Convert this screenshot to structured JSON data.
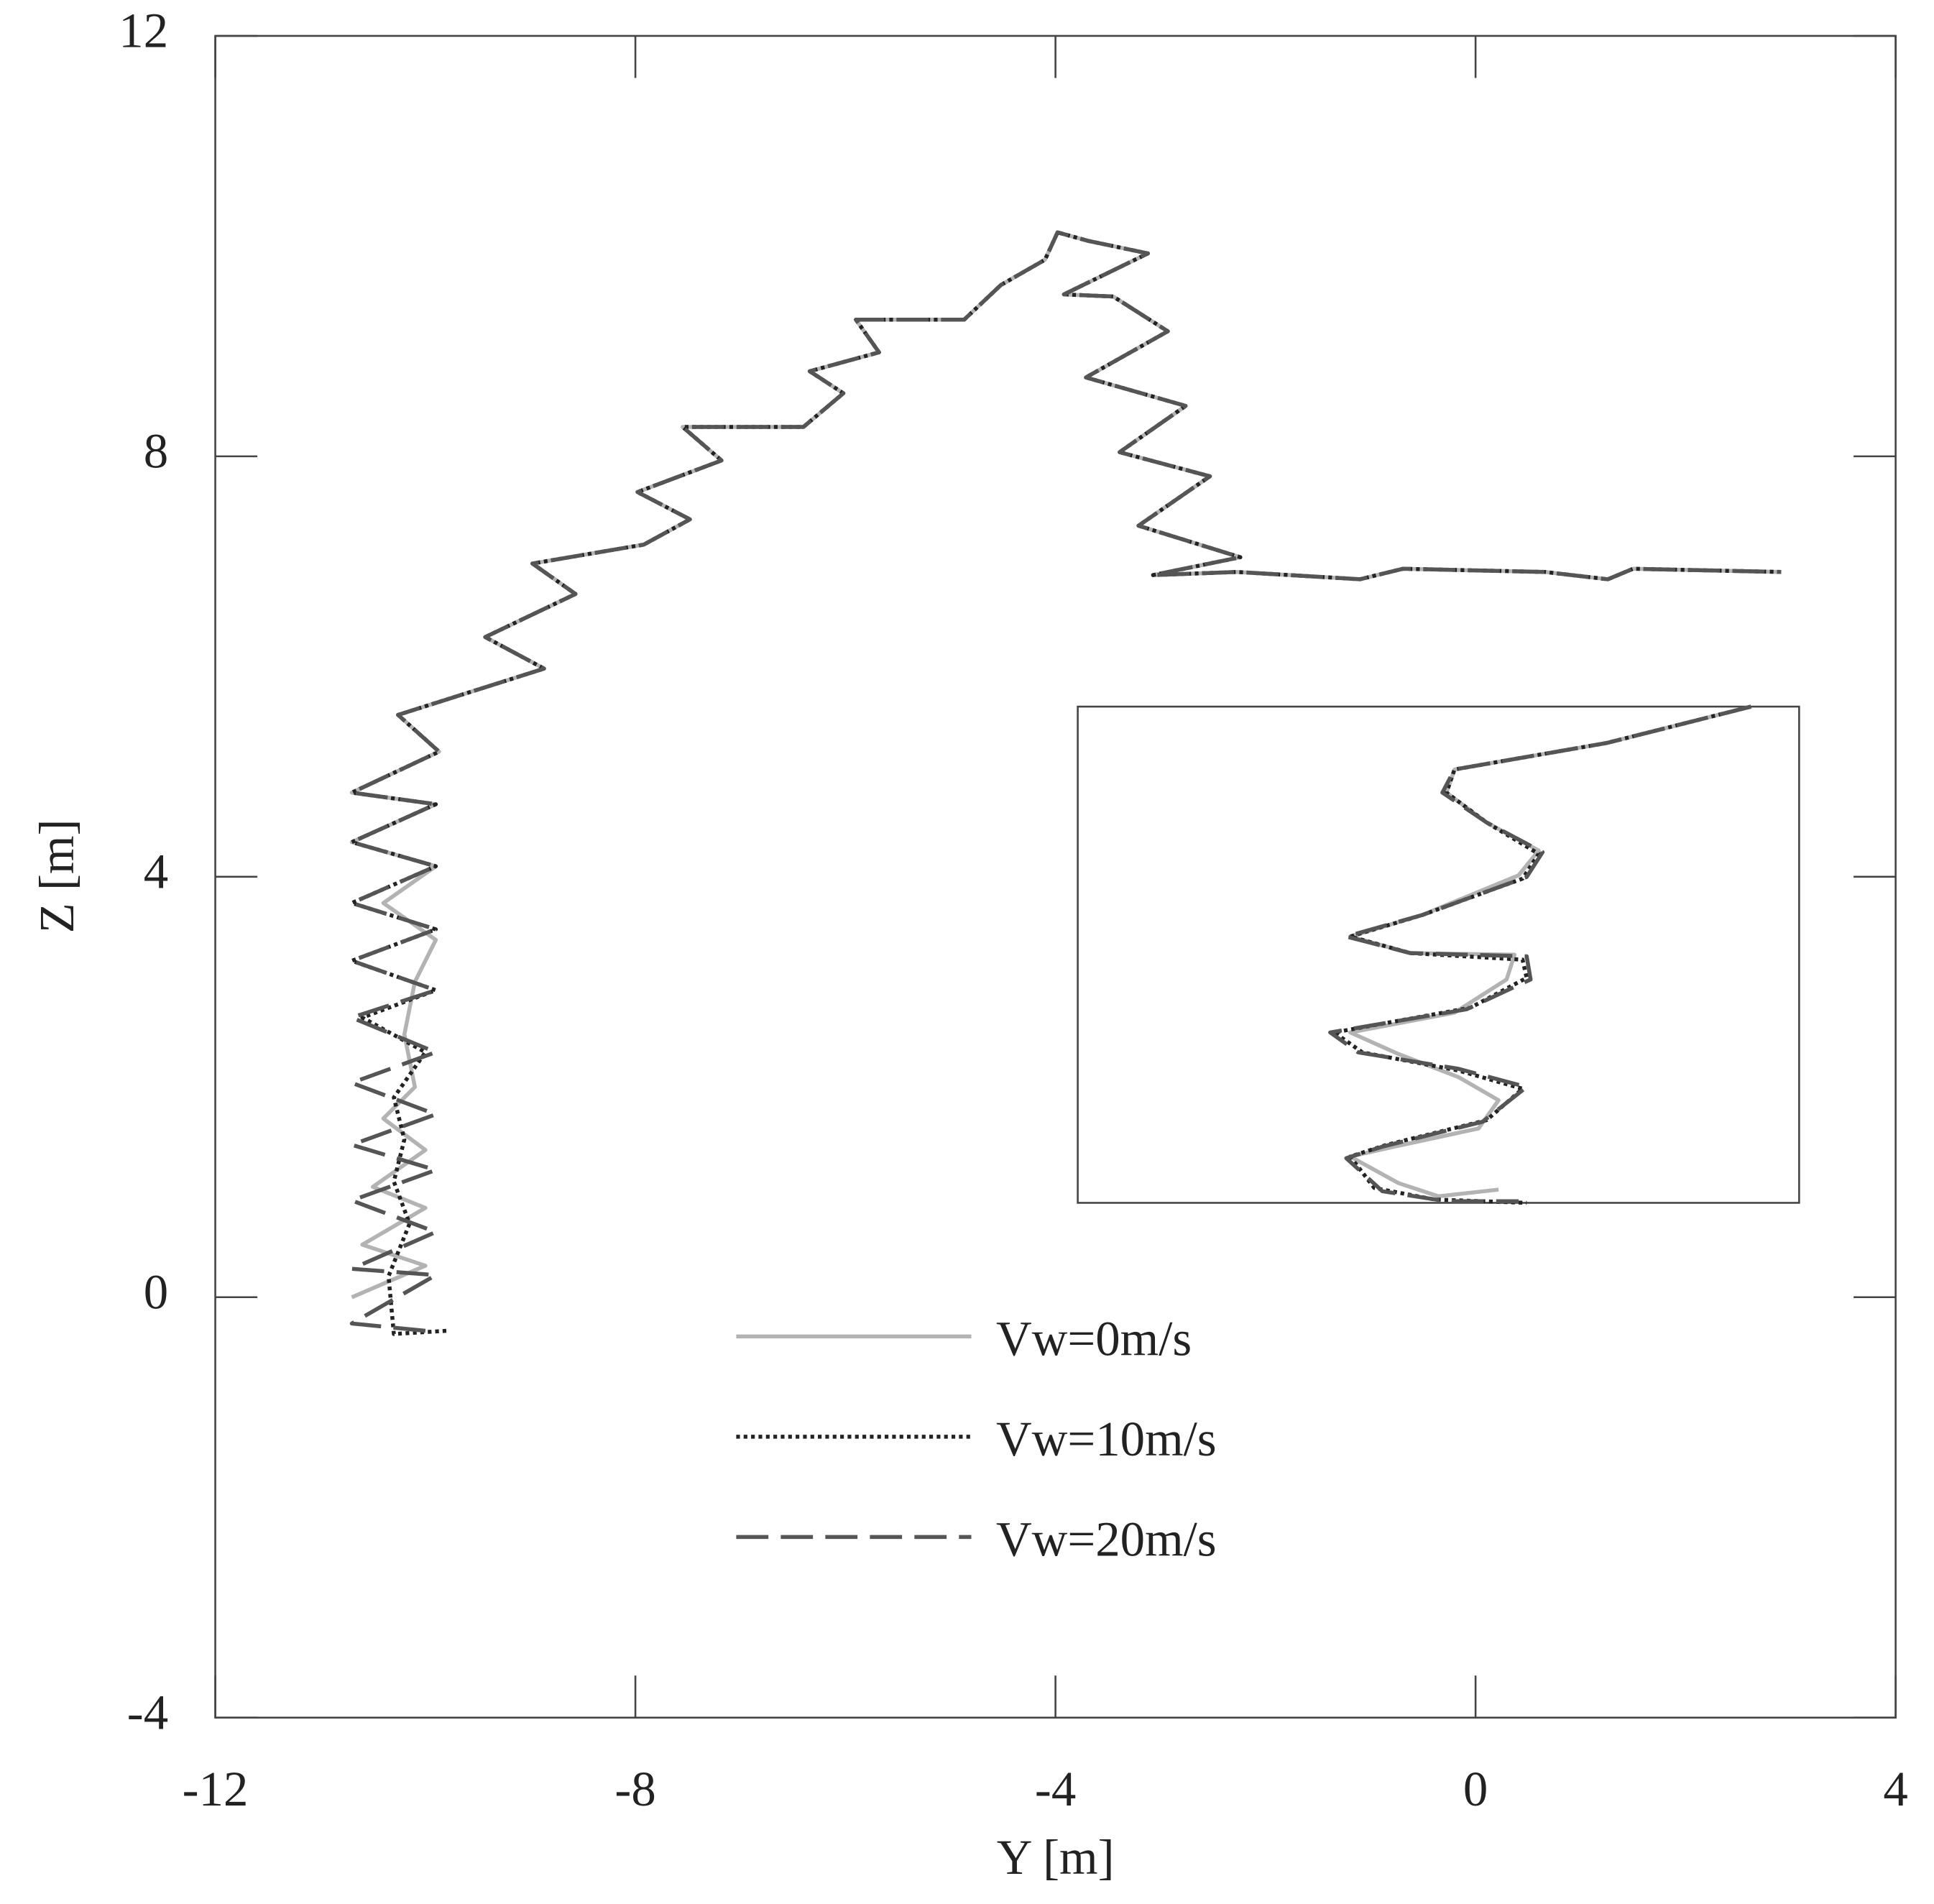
{
  "chart_data": [
    {
      "type": "line",
      "xlabel": "Y [m]",
      "ylabel": "Z [m]",
      "xlim": [
        -12,
        4
      ],
      "ylim": [
        -4,
        12
      ],
      "xticks": [
        -12,
        -8,
        -4,
        0,
        4
      ],
      "yticks": [
        -4,
        0,
        4,
        8,
        12
      ],
      "legend": "lower center",
      "series": [
        {
          "name": "Vw=0m/s",
          "color": "#b3b3b3",
          "linestyle": "solid",
          "x": [
            -10.7,
            -10.0,
            -10.6,
            -10.0,
            -10.5,
            -10.0,
            -10.4,
            -10.1,
            -10.2,
            -10.1,
            -9.9,
            -10.4,
            -9.9,
            -10.7,
            -9.9,
            -10.7,
            -9.87,
            -10.26,
            -8.87,
            -9.43,
            -8.57,
            -8.98,
            -7.92,
            -7.48,
            -7.98,
            -7.18,
            -7.55,
            -6.4,
            -6.02,
            -6.34,
            -5.68,
            -5.9,
            -4.87,
            -4.52,
            -4.1,
            -3.98,
            -3.69,
            -3.12,
            -3.92,
            -3.45,
            -2.93,
            -3.71,
            -2.76,
            -3.39,
            -2.53,
            -3.21,
            -2.24,
            -3.07,
            -2.27,
            -1.1,
            -0.69,
            0.66,
            1.26,
            1.5,
            2.91
          ],
          "values": [
            0.0,
            0.3,
            0.5,
            0.85,
            1.05,
            1.4,
            1.7,
            2.0,
            2.5,
            3.0,
            3.4,
            3.75,
            4.1,
            4.33,
            4.69,
            4.8,
            5.19,
            5.54,
            5.98,
            6.28,
            6.69,
            6.98,
            7.16,
            7.4,
            7.66,
            7.96,
            8.28,
            8.28,
            8.6,
            8.81,
            8.99,
            9.3,
            9.3,
            9.63,
            9.87,
            10.13,
            10.05,
            9.93,
            9.54,
            9.52,
            9.19,
            8.75,
            8.48,
            8.04,
            7.81,
            7.34,
            7.04,
            6.87,
            6.9,
            6.83,
            6.93,
            6.9,
            6.83,
            6.93,
            6.9
          ]
        },
        {
          "name": "Vw=10m/s",
          "color": "#222222",
          "linestyle": "dotted",
          "x": [
            -9.8,
            -10.3,
            -10.35,
            -10.15,
            -10.3,
            -10.2,
            -10.3,
            -10.0,
            -10.6,
            -9.9,
            -10.7,
            -9.9,
            -10.7,
            -9.9,
            -10.7,
            -9.9,
            -10.7,
            -9.87,
            -10.26,
            -8.87,
            -9.43,
            -8.57,
            -8.98,
            -7.92,
            -7.48,
            -7.98,
            -7.18,
            -7.55,
            -6.4,
            -6.02,
            -6.34,
            -5.68,
            -5.9,
            -4.87,
            -4.52,
            -4.1,
            -3.98,
            -3.69,
            -3.12,
            -3.92,
            -3.45,
            -2.93,
            -3.71,
            -2.76,
            -3.39,
            -2.53,
            -3.21,
            -2.24,
            -3.07,
            -2.27,
            -1.1,
            -0.69,
            0.66,
            1.26,
            1.5,
            2.91
          ],
          "values": [
            -0.32,
            -0.35,
            0.2,
            0.7,
            1.1,
            1.5,
            1.9,
            2.33,
            2.66,
            2.92,
            3.2,
            3.5,
            3.75,
            4.1,
            4.33,
            4.69,
            4.8,
            5.19,
            5.54,
            5.98,
            6.28,
            6.69,
            6.98,
            7.16,
            7.4,
            7.66,
            7.96,
            8.28,
            8.28,
            8.6,
            8.81,
            8.99,
            9.3,
            9.3,
            9.63,
            9.87,
            10.13,
            10.05,
            9.93,
            9.54,
            9.52,
            9.19,
            8.75,
            8.48,
            8.04,
            7.81,
            7.34,
            7.04,
            6.87,
            6.9,
            6.83,
            6.93,
            6.9,
            6.83,
            6.93,
            6.9
          ]
        },
        {
          "name": "Vw=20m/s",
          "color": "#555555",
          "linestyle": "dashed",
          "x": [
            -10.0,
            -10.7,
            -9.9,
            -10.7,
            -9.9,
            -10.7,
            -9.9,
            -10.7,
            -9.9,
            -10.7,
            -9.9,
            -10.7,
            -9.9,
            -10.7,
            -9.9,
            -10.7,
            -9.9,
            -10.7,
            -9.9,
            -10.7,
            -9.87,
            -10.26,
            -8.87,
            -9.43,
            -8.57,
            -8.98,
            -7.92,
            -7.48,
            -7.98,
            -7.18,
            -7.55,
            -6.4,
            -6.02,
            -6.34,
            -5.68,
            -5.9,
            -4.87,
            -4.52,
            -4.1,
            -3.98,
            -3.69,
            -3.12,
            -3.92,
            -3.45,
            -2.93,
            -3.71,
            -2.76,
            -3.39,
            -2.53,
            -3.21,
            -2.24,
            -3.07,
            -2.27,
            -1.1,
            -0.69,
            0.66,
            1.26,
            1.5,
            2.91
          ],
          "values": [
            -0.32,
            -0.25,
            0.21,
            0.27,
            0.62,
            0.92,
            1.21,
            1.45,
            1.74,
            2.04,
            2.33,
            2.66,
            2.92,
            3.2,
            3.5,
            3.75,
            4.1,
            4.33,
            4.69,
            4.8,
            5.19,
            5.54,
            5.98,
            6.28,
            6.69,
            6.98,
            7.16,
            7.4,
            7.66,
            7.96,
            8.28,
            8.28,
            8.6,
            8.81,
            8.99,
            9.3,
            9.3,
            9.63,
            9.87,
            10.13,
            10.05,
            9.93,
            9.54,
            9.52,
            9.19,
            8.75,
            8.48,
            8.04,
            7.81,
            7.34,
            7.04,
            6.87,
            6.9,
            6.83,
            6.93,
            6.9,
            6.83,
            6.93,
            6.9
          ]
        }
      ]
    },
    {
      "type": "line",
      "xlim": [
        -11.2,
        -9.4
      ],
      "ylim": [
        2.6,
        5.6
      ],
      "series": [
        {
          "color": "#b3b3b3",
          "linestyle": "solid",
          "x": [
            -9.52,
            -9.88,
            -10.26,
            -10.28,
            -10.18,
            -10.05,
            -10.1,
            -10.34,
            -10.52,
            -10.37,
            -10.11,
            -10.13,
            -10.26,
            -10.52,
            -10.4,
            -10.25,
            -10.15,
            -10.2,
            -10.41,
            -10.52,
            -10.4,
            -10.3,
            -10.15
          ],
          "values": [
            5.6,
            5.38,
            5.22,
            5.08,
            4.9,
            4.73,
            4.58,
            4.34,
            4.21,
            4.11,
            4.1,
            3.95,
            3.75,
            3.63,
            3.5,
            3.36,
            3.22,
            3.05,
            2.94,
            2.88,
            2.72,
            2.64,
            2.68
          ]
        },
        {
          "color": "#222222",
          "linestyle": "dotted",
          "x": [
            -9.52,
            -9.88,
            -10.26,
            -10.28,
            -10.18,
            -10.05,
            -10.09,
            -10.34,
            -10.52,
            -10.37,
            -10.09,
            -10.08,
            -10.22,
            -10.56,
            -10.49,
            -10.25,
            -10.09,
            -10.18,
            -10.43,
            -10.52,
            -10.46,
            -10.31,
            -10.08
          ],
          "values": [
            5.6,
            5.38,
            5.22,
            5.08,
            4.9,
            4.71,
            4.56,
            4.34,
            4.21,
            4.11,
            4.07,
            3.96,
            3.78,
            3.63,
            3.51,
            3.4,
            3.29,
            3.1,
            2.95,
            2.88,
            2.69,
            2.62,
            2.6
          ]
        },
        {
          "color": "#555555",
          "linestyle": "dashed",
          "x": [
            -9.52,
            -9.88,
            -10.26,
            -10.29,
            -10.18,
            -10.04,
            -10.08,
            -10.34,
            -10.53,
            -10.37,
            -10.08,
            -10.07,
            -10.23,
            -10.57,
            -10.5,
            -10.25,
            -10.08,
            -10.19,
            -10.44,
            -10.53,
            -10.44,
            -10.28,
            -10.1
          ],
          "values": [
            5.6,
            5.38,
            5.22,
            5.08,
            4.9,
            4.72,
            4.57,
            4.34,
            4.21,
            4.11,
            4.09,
            3.95,
            3.77,
            3.63,
            3.51,
            3.41,
            3.3,
            3.09,
            2.94,
            2.87,
            2.67,
            2.61,
            2.61
          ]
        }
      ]
    }
  ]
}
